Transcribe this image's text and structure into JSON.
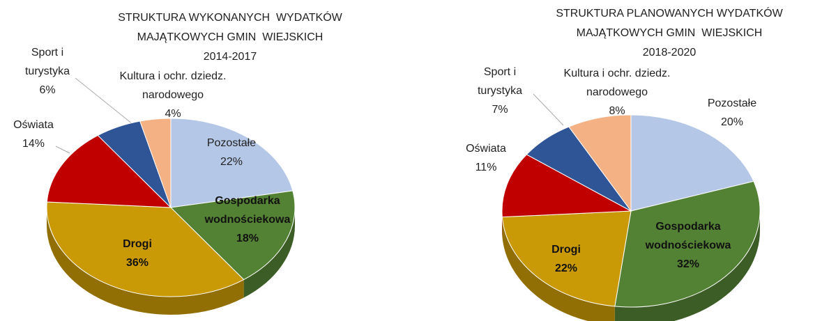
{
  "chart_data": [
    {
      "type": "pie",
      "title": [
        "STRUKTURA WYKONANYCH  WYDATKÓW",
        "MAJĄTKOWYCH GMIN  WIEJSKICH",
        "2014-2017"
      ],
      "categories": [
        "Pozostałe",
        "Gospodarka wodnościekowa",
        "Drogi",
        "Oświata",
        "Sport i turystyka",
        "Kultura i ochr. dziedz. narodowego"
      ],
      "values": [
        22,
        18,
        36,
        14,
        6,
        4
      ],
      "value_labels": [
        "22%",
        "18%",
        "36%",
        "14%",
        "6%",
        "4%"
      ],
      "colors": [
        "#b4c7e7",
        "#548235",
        "#c99a06",
        "#c00000",
        "#2f5597",
        "#f4b183"
      ]
    },
    {
      "type": "pie",
      "title": [
        "STRUKTURA PLANOWANYCH WYDATKÓW",
        "MAJĄTKOWYCH GMIN  WIEJSKICH",
        "2018-2020"
      ],
      "categories": [
        "Pozostałe",
        "Gospodarka wodnościekowa",
        "Drogi",
        "Oświata",
        "Sport i turystyka",
        "Kultura i ochr. dziedz. narodowego"
      ],
      "values": [
        20,
        32,
        22,
        11,
        7,
        8
      ],
      "value_labels": [
        "20%",
        "32%",
        "22%",
        "11%",
        "7%",
        "8%"
      ],
      "colors": [
        "#b4c7e7",
        "#548235",
        "#c99a06",
        "#c00000",
        "#2f5597",
        "#f4b183"
      ]
    }
  ]
}
